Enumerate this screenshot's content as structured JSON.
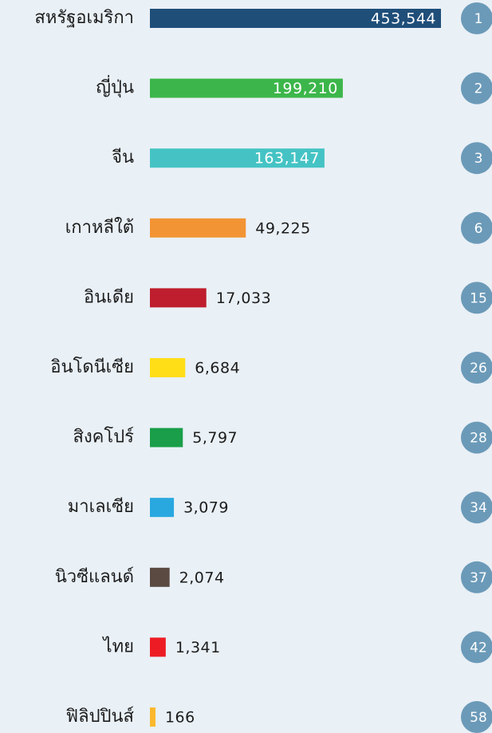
{
  "chart_data": {
    "type": "bar",
    "orientation": "horizontal",
    "scale": "sqrt",
    "categories": [
      "สหรัฐอเมริกา",
      "ญี่ปุ่น",
      "จีน",
      "เกาหลีใต้",
      "อินเดีย",
      "อินโดนีเซีย",
      "สิงคโปร์",
      "มาเลเซีย",
      "นิวซีแลนด์",
      "ไทย",
      "ฟิลิปปินส์"
    ],
    "values": [
      453544,
      199210,
      163147,
      49225,
      17033,
      6684,
      5797,
      3079,
      2074,
      1341,
      166
    ],
    "value_labels": [
      "453,544",
      "199,210",
      "163,147",
      "49,225",
      "17,033",
      "6,684",
      "5,797",
      "3,079",
      "2,074",
      "1,341",
      "166"
    ],
    "colors": [
      "#1f4e79",
      "#3cb64a",
      "#45c3c4",
      "#f29434",
      "#be1e2d",
      "#ffde17",
      "#1a9e49",
      "#29a8e0",
      "#5a4a42",
      "#ed1c24",
      "#fbb82e"
    ],
    "ranks": [
      1,
      2,
      3,
      6,
      15,
      26,
      28,
      34,
      37,
      42,
      58
    ]
  }
}
